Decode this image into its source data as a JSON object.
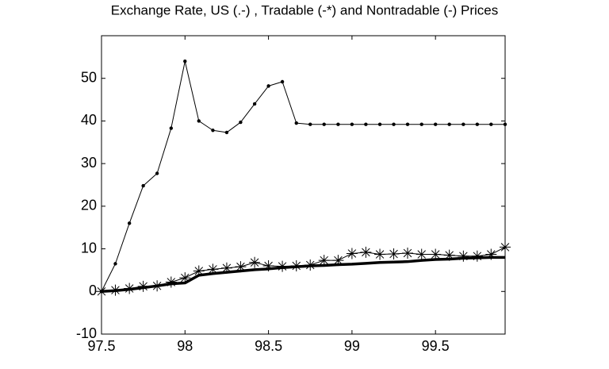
{
  "chart_data": {
    "type": "line",
    "title": "Exchange Rate, US (.-) , Tradable (-*) and Nontradable (-) Prices",
    "x": [
      97.5,
      97.583,
      97.667,
      97.75,
      97.833,
      97.917,
      98,
      98.083,
      98.167,
      98.25,
      98.333,
      98.417,
      98.5,
      98.583,
      98.667,
      98.75,
      98.833,
      98.917,
      99,
      99.083,
      99.167,
      99.25,
      99.333,
      99.417,
      99.5,
      99.583,
      99.667,
      99.75,
      99.833,
      99.917
    ],
    "series": [
      {
        "name": "Exchange Rate, US",
        "color": "#000000",
        "marker": "dot",
        "line_width": 1,
        "values": [
          0,
          6.5,
          16,
          24.8,
          27.7,
          38.3,
          54,
          40,
          37.8,
          37.3,
          39.7,
          44,
          48.2,
          49.2,
          39.5,
          39.2,
          39.2,
          39.2,
          39.2,
          39.2,
          39.2,
          39.2,
          39.2,
          39.2,
          39.2,
          39.2,
          39.2,
          39.2,
          39.2,
          39.2
        ]
      },
      {
        "name": "Tradable",
        "color": "#000000",
        "marker": "star",
        "line_width": 1,
        "values": [
          0,
          0.3,
          0.7,
          1.2,
          1.3,
          2.2,
          3.2,
          4.8,
          5.2,
          5.5,
          5.8,
          6.8,
          6.0,
          5.9,
          6.0,
          6.2,
          7.3,
          7.3,
          8.9,
          9.2,
          8.7,
          8.8,
          9.0,
          8.7,
          8.7,
          8.5,
          8.3,
          8.3,
          8.7,
          10.4
        ]
      },
      {
        "name": "Nontradable",
        "color": "#000000",
        "marker": "none",
        "line_width": 3.5,
        "values": [
          0,
          0.2,
          0.5,
          0.9,
          1.3,
          1.8,
          2.0,
          3.8,
          4.2,
          4.5,
          4.8,
          5.1,
          5.3,
          5.6,
          5.8,
          6.0,
          6.1,
          6.3,
          6.4,
          6.6,
          6.8,
          6.9,
          7.0,
          7.3,
          7.5,
          7.6,
          7.8,
          7.9,
          8.0,
          8.0
        ]
      }
    ],
    "xlim": [
      97.5,
      99.917
    ],
    "xticks": [
      97.5,
      98,
      98.5,
      99,
      99.5
    ],
    "ylim": [
      -10,
      60
    ],
    "yticks": [
      -10,
      0,
      10,
      20,
      30,
      40,
      50
    ]
  }
}
